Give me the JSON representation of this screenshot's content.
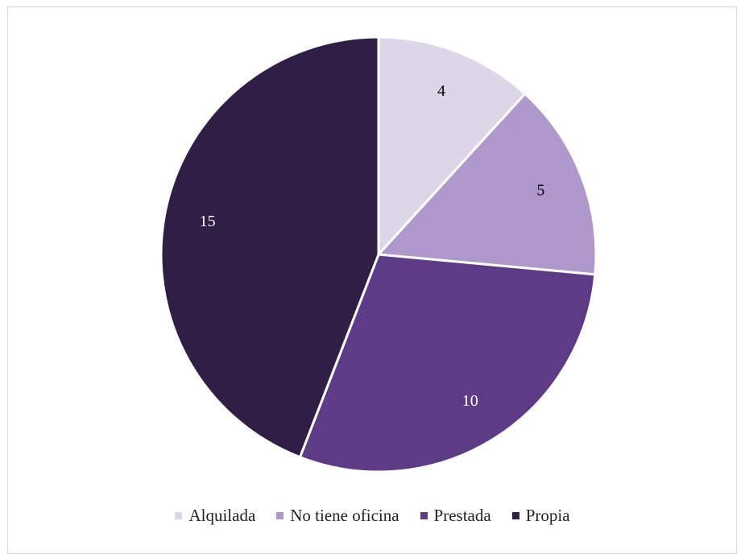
{
  "chart_data": {
    "type": "pie",
    "title": "",
    "categories": [
      "Alquilada",
      "No tiene oficina",
      "Prestada",
      "Propia"
    ],
    "values": [
      4,
      5,
      10,
      15
    ],
    "colors": [
      "#ddd6e8",
      "#ae98cc",
      "#5d3b87",
      "#301e46"
    ],
    "label_colors": [
      "#000000",
      "#000000",
      "#ffffff",
      "#ffffff"
    ],
    "start_angle_deg": 0,
    "direction": "clockwise",
    "legend_position": "bottom",
    "data_labels": true
  }
}
